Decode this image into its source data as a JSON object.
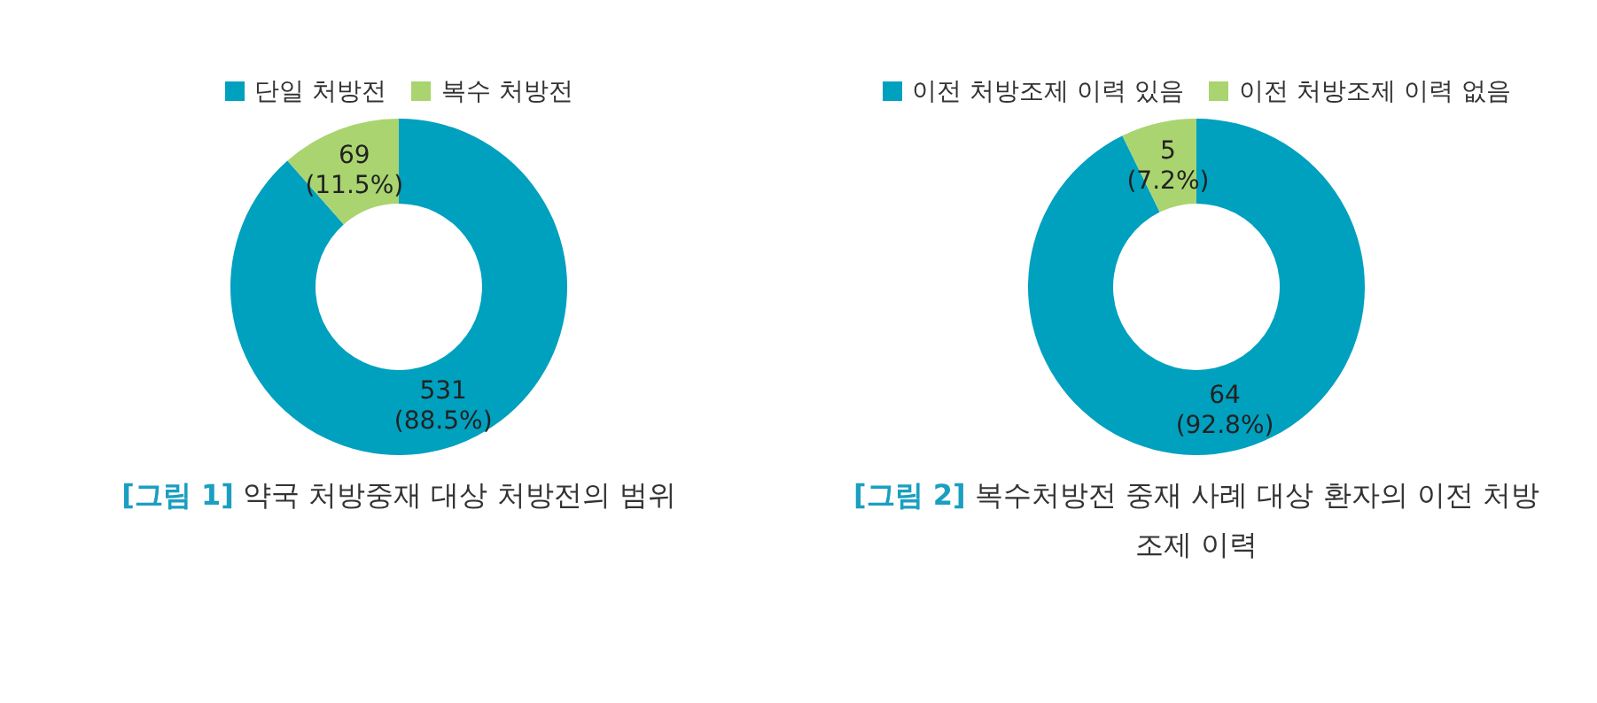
{
  "chart_data": [
    {
      "type": "donut",
      "title": "[그림 1] 약국 처방중재 대상 처방전의 범위",
      "categories": [
        "단일 처방전",
        "복수 처방전"
      ],
      "values": [
        531,
        69
      ],
      "colors": [
        "#00a0bf",
        "#a9d46f"
      ],
      "value_labels": [
        "531 (88.5%)",
        "69 (11.5%)"
      ],
      "legend": "top"
    },
    {
      "type": "donut",
      "title": "[그림 2] 복수처방전 중재 사례 대상 환자의 이전 처방조제 이력",
      "categories": [
        "이전 처방조제 이력 있음",
        "이전 처방조제 이력 없음"
      ],
      "values": [
        64,
        5
      ],
      "colors": [
        "#00a0bf",
        "#a9d46f"
      ],
      "value_labels": [
        "64 (92.8%)",
        "5 (7.2%)"
      ],
      "legend": "top"
    }
  ]
}
